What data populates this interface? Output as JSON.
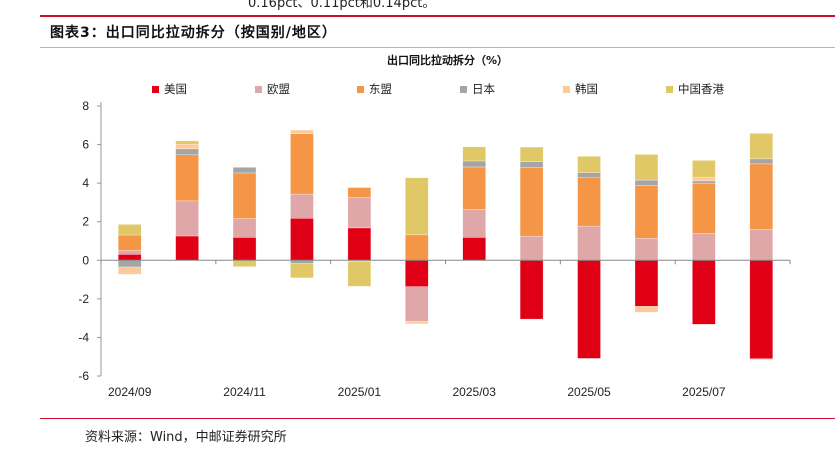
{
  "header": {
    "cut_text": "0.16pct、0.11pct和0.14pct。",
    "title": "图表3：出口同比拉动拆分（按国别/地区）"
  },
  "source": "资料来源：Wind，中邮证券研究所",
  "chart_data": {
    "type": "bar",
    "stacked": true,
    "title": "出口同比拉动拆分（%）",
    "categories": [
      "2024/09",
      "2024/10",
      "2024/11",
      "2024/12",
      "2025/01",
      "2025/02",
      "2025/03",
      "2025/04",
      "2025/05",
      "2025/06",
      "2025/07",
      "2025/08"
    ],
    "tick_labels": [
      "2024/09",
      "2024/11",
      "2025/01",
      "2025/03",
      "2025/05",
      "2025/07"
    ],
    "ylim": [
      -6,
      8
    ],
    "yticks": [
      -6,
      -4,
      -2,
      0,
      2,
      4,
      6,
      8
    ],
    "legend_position": "top",
    "grid": false,
    "series": [
      {
        "name": "美国",
        "color": "#e00016",
        "values": [
          0.31,
          1.26,
          1.19,
          2.18,
          1.68,
          -1.37,
          1.19,
          -3.05,
          -5.09,
          -2.39,
          -3.32,
          -5.11
        ]
      },
      {
        "name": "欧盟",
        "color": "#e0a7a8",
        "values": [
          0.2,
          1.82,
          0.97,
          1.25,
          1.58,
          -1.8,
          1.45,
          1.25,
          1.77,
          1.14,
          1.4,
          1.61
        ]
      },
      {
        "name": "东盟",
        "color": "#f59646",
        "values": [
          0.8,
          2.39,
          2.37,
          3.13,
          0.5,
          1.32,
          2.2,
          3.57,
          2.51,
          2.74,
          2.6,
          3.39
        ]
      },
      {
        "name": "日本",
        "color": "#a5a5a5",
        "values": [
          -0.35,
          0.31,
          0.29,
          -0.17,
          0.03,
          0,
          0.31,
          0.29,
          0.26,
          0.28,
          0.12,
          0.26
        ]
      },
      {
        "name": "韩国",
        "color": "#fdc997",
        "values": [
          -0.38,
          0.24,
          0,
          0.19,
          -0.05,
          -0.12,
          0,
          0,
          0,
          -0.31,
          0.19,
          -0.05
        ]
      },
      {
        "name": "中国香港",
        "color": "#e0c866",
        "values": [
          0.55,
          0.17,
          -0.33,
          -0.74,
          -1.3,
          2.96,
          0.73,
          0.76,
          0.85,
          1.33,
          0.87,
          1.32
        ]
      }
    ]
  }
}
